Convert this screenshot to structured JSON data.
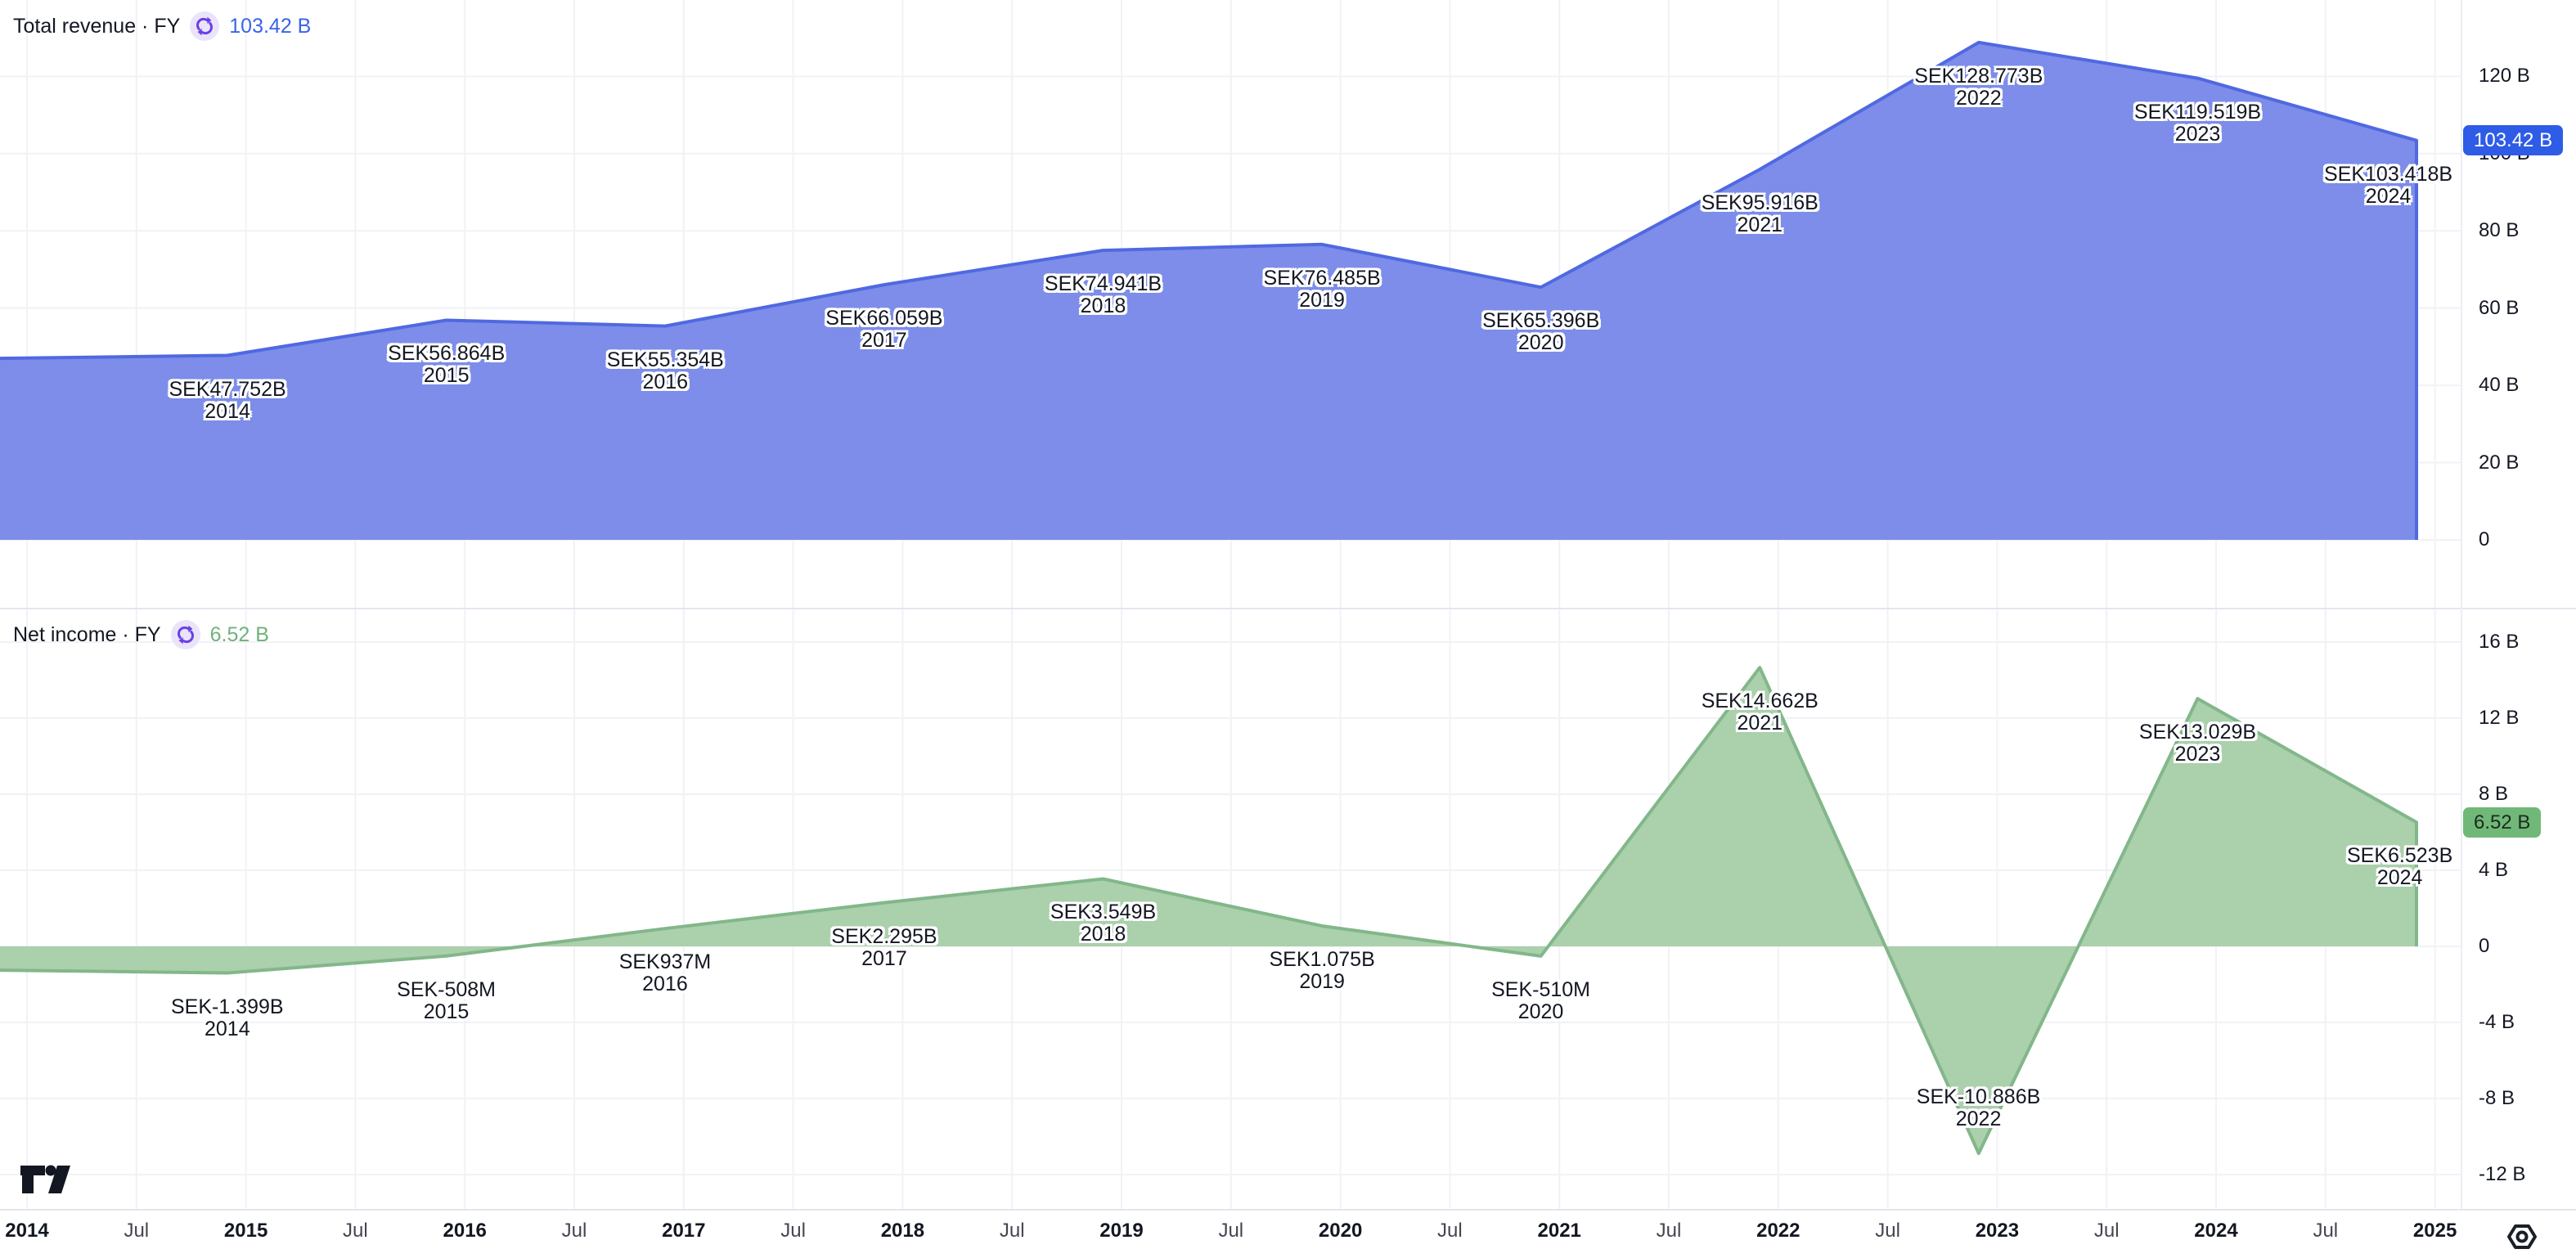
{
  "panes": [
    {
      "title": "Total revenue · FY",
      "value": "103.42 B",
      "value_color": "#3a63e8"
    },
    {
      "title": "Net income · FY",
      "value": "6.52 B",
      "value_color": "#6fb27a"
    }
  ],
  "chart_data": [
    {
      "type": "area",
      "name": "Total revenue",
      "period": "FY",
      "currency": "SEK",
      "title": "Total revenue · FY",
      "last_value_label": "103.42 B",
      "last_value_B": 103.42,
      "years": [
        2014,
        2015,
        2016,
        2017,
        2018,
        2019,
        2020,
        2021,
        2022,
        2023,
        2024
      ],
      "values_B": [
        47.752,
        56.864,
        55.354,
        66.059,
        74.941,
        76.485,
        65.396,
        95.916,
        128.773,
        119.519,
        103.418
      ],
      "point_labels": [
        "SEK47.752B",
        "SEK56.864B",
        "SEK55.354B",
        "SEK66.059B",
        "SEK74.941B",
        "SEK76.485B",
        "SEK65.396B",
        "SEK95.916B",
        "SEK128.773B",
        "SEK119.519B",
        "SEK103.418B"
      ],
      "label_positions": [
        "below",
        "below",
        "below",
        "below",
        "below",
        "below",
        "below",
        "below",
        "below",
        "below",
        "below"
      ],
      "left_edge_value_B": 47.0,
      "ylim": [
        -8,
        149
      ],
      "grid": true,
      "y_axis": {
        "ticks": [
          {
            "label": "120 B",
            "value": 120
          },
          {
            "label": "100 B",
            "value": 100
          },
          {
            "label": "80 B",
            "value": 80
          },
          {
            "label": "60 B",
            "value": 60
          },
          {
            "label": "40 B",
            "value": 40
          },
          {
            "label": "20 B",
            "value": 20
          },
          {
            "label": "0",
            "value": 0
          }
        ]
      },
      "colors": {
        "line": "#5069e1",
        "fill": "#7d8de9",
        "badge_bg": "#2f5ce6",
        "badge_text": "#ffffff"
      }
    },
    {
      "type": "area",
      "name": "Net income",
      "period": "FY",
      "currency": "SEK",
      "title": "Net income · FY",
      "last_value_label": "6.52 B",
      "last_value_B": 6.523,
      "years": [
        2014,
        2015,
        2016,
        2017,
        2018,
        2019,
        2020,
        2021,
        2022,
        2023,
        2024
      ],
      "values_B": [
        -1.399,
        -0.508,
        0.937,
        2.295,
        3.549,
        1.075,
        -0.51,
        14.662,
        -10.886,
        13.029,
        6.523
      ],
      "point_labels": [
        "SEK-1.399B",
        "SEK-508M",
        "SEK937M",
        "SEK2.295B",
        "SEK3.549B",
        "SEK1.075B",
        "SEK-510M",
        "SEK14.662B",
        "SEK-10.886B",
        "SEK13.029B",
        "SEK6.523B"
      ],
      "label_positions": [
        "below",
        "below",
        "below",
        "below",
        "below",
        "below",
        "below",
        "below",
        "above",
        "below",
        "below"
      ],
      "left_edge_value_B": -1.25,
      "ylim": [
        -18.5,
        18.5
      ],
      "grid": true,
      "y_axis": {
        "ticks": [
          {
            "label": "16 B",
            "value": 16
          },
          {
            "label": "12 B",
            "value": 12
          },
          {
            "label": "8 B",
            "value": 8
          },
          {
            "label": "4 B",
            "value": 4
          },
          {
            "label": "0",
            "value": 0
          },
          {
            "label": "-4 B",
            "value": -4
          },
          {
            "label": "-8 B",
            "value": -8
          },
          {
            "label": "-12 B",
            "value": -12
          }
        ]
      },
      "colors": {
        "line": "#82b78a",
        "fill": "#abd0ac",
        "badge_bg": "#70b877",
        "badge_text": "#1c2b20"
      }
    }
  ],
  "time_axis": {
    "labels": [
      {
        "label": "2014",
        "bold": true
      },
      {
        "label": "Jul",
        "bold": false
      },
      {
        "label": "2015",
        "bold": true
      },
      {
        "label": "Jul",
        "bold": false
      },
      {
        "label": "2016",
        "bold": true
      },
      {
        "label": "Jul",
        "bold": false
      },
      {
        "label": "2017",
        "bold": true
      },
      {
        "label": "Jul",
        "bold": false
      },
      {
        "label": "2018",
        "bold": true
      },
      {
        "label": "Jul",
        "bold": false
      },
      {
        "label": "2019",
        "bold": true
      },
      {
        "label": "Jul",
        "bold": false
      },
      {
        "label": "2020",
        "bold": true
      },
      {
        "label": "Jul",
        "bold": false
      },
      {
        "label": "2021",
        "bold": true
      },
      {
        "label": "Jul",
        "bold": false
      },
      {
        "label": "2022",
        "bold": true
      },
      {
        "label": "Jul",
        "bold": false
      },
      {
        "label": "2023",
        "bold": true
      },
      {
        "label": "Jul",
        "bold": false
      },
      {
        "label": "2024",
        "bold": true
      },
      {
        "label": "Jul",
        "bold": false
      },
      {
        "label": "2025",
        "bold": true
      }
    ]
  },
  "icons": {
    "refresh": "refresh-sync-icon",
    "refresh_color": "#6b40e3",
    "refresh_bg": "#eae4fb",
    "corner_settings": "axis-settings-icon",
    "logo": "tradingview-logo"
  }
}
